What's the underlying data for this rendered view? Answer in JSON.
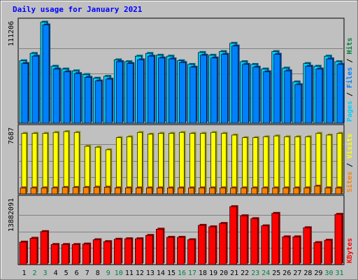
{
  "title": "Daily usage for January 2021",
  "colors": {
    "hits": "#00ccff",
    "files": "#0080ff",
    "pages": "#00ccff",
    "visits": "#ffff00",
    "sites": "#ff8000",
    "kbytes": "#ff0000",
    "weekday_label": "#000000",
    "weekend_label": "#008040",
    "background": "#c0c0c0",
    "plot_bg": "#c0c0c0"
  },
  "chart_data": [
    {
      "type": "bar",
      "panel": "hits-files-pages",
      "ymax_label": "111206",
      "ylim": [
        0,
        111206
      ],
      "legend_right": [
        {
          "text": "Pages",
          "color_key": "pages"
        },
        {
          "text": " / ",
          "color_key": "weekday_label"
        },
        {
          "text": "Files",
          "color_key": "files"
        },
        {
          "text": " / ",
          "color_key": "weekday_label"
        },
        {
          "text": "Hits",
          "color_key": "weekend_label"
        }
      ],
      "series": [
        {
          "name": "Hits",
          "values": [
            68000,
            76000,
            110000,
            62000,
            59000,
            57000,
            53000,
            49000,
            51000,
            69000,
            67000,
            73000,
            76000,
            74000,
            73000,
            68000,
            64000,
            77000,
            74000,
            78000,
            87000,
            67000,
            64000,
            59000,
            78000,
            60000,
            45000,
            65000,
            62000,
            73000,
            67000
          ]
        },
        {
          "name": "Files",
          "values": [
            65000,
            73000,
            107000,
            59000,
            56000,
            54000,
            50000,
            46000,
            48000,
            67000,
            65000,
            69000,
            73000,
            71000,
            70000,
            66000,
            61000,
            74000,
            71000,
            75000,
            84000,
            64000,
            61000,
            56000,
            75000,
            57000,
            42000,
            62000,
            59000,
            70000,
            64000
          ]
        }
      ]
    },
    {
      "type": "bar",
      "panel": "visits-sites",
      "ymax_label": "7687",
      "ylim": [
        0,
        7687
      ],
      "legend_right": [
        {
          "text": "Sites",
          "color_key": "sites"
        },
        {
          "text": " / ",
          "color_key": "weekday_label"
        },
        {
          "text": "Visits",
          "color_key": "visits"
        }
      ],
      "series": [
        {
          "name": "Visits",
          "values": [
            7000,
            7000,
            7000,
            7100,
            7200,
            7100,
            5500,
            5400,
            5100,
            6500,
            6600,
            7100,
            6900,
            7000,
            7000,
            7100,
            7000,
            7000,
            7100,
            7000,
            6800,
            6500,
            6500,
            6600,
            6700,
            6600,
            6600,
            6600,
            7000,
            6800,
            7000
          ]
        },
        {
          "name": "Sites",
          "values": [
            700,
            700,
            700,
            700,
            750,
            750,
            750,
            780,
            780,
            700,
            700,
            700,
            700,
            700,
            700,
            700,
            700,
            700,
            700,
            700,
            700,
            700,
            700,
            700,
            700,
            700,
            700,
            700,
            900,
            700,
            700
          ]
        }
      ]
    },
    {
      "type": "bar",
      "panel": "kbytes",
      "ymax_label": "13882091",
      "ylim": [
        0,
        13882091
      ],
      "legend_right": [
        {
          "text": "KBytes",
          "color_key": "kbytes"
        }
      ],
      "series": [
        {
          "name": "KBytes",
          "values": [
            4700000,
            5500000,
            6900000,
            4200000,
            4200000,
            4200000,
            4300000,
            5200000,
            4800000,
            5300000,
            5400000,
            5400000,
            6100000,
            7400000,
            5700000,
            5700000,
            5200000,
            8200000,
            7900000,
            8600000,
            12100000,
            10200000,
            9600000,
            8100000,
            10700000,
            5800000,
            5800000,
            7700000,
            4600000,
            5100000,
            10500000
          ]
        }
      ]
    }
  ],
  "x_axis": {
    "labels": [
      "1",
      "2",
      "3",
      "4",
      "5",
      "6",
      "7",
      "8",
      "9",
      "10",
      "11",
      "12",
      "13",
      "14",
      "15",
      "16",
      "17",
      "18",
      "19",
      "20",
      "21",
      "22",
      "23",
      "24",
      "25",
      "26",
      "27",
      "28",
      "29",
      "30",
      "31"
    ],
    "weekend_days": [
      2,
      3,
      9,
      10,
      16,
      17,
      23,
      24,
      30,
      31
    ]
  }
}
